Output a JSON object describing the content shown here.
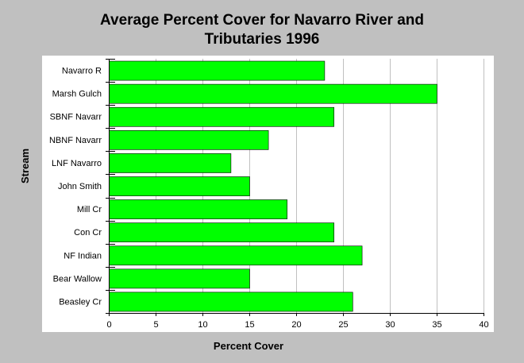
{
  "chart_data": {
    "type": "bar",
    "orientation": "horizontal",
    "title": "Average Percent Cover for Navarro River and Tributaries 1996",
    "title_lines": [
      "Average Percent Cover for Navarro River and",
      "Tributaries 1996"
    ],
    "xlabel": "Percent Cover",
    "ylabel": "Stream",
    "categories": [
      "Navarro R",
      "Marsh Gulch",
      "SBNF Navarr",
      "NBNF Navarr",
      "LNF Navarro",
      "John Smith",
      "Mill Cr",
      "Con Cr",
      "NF Indian",
      "Bear Wallow",
      "Beasley Cr"
    ],
    "values": [
      23,
      35,
      24,
      17,
      13,
      15,
      19,
      24,
      27,
      15,
      26
    ],
    "xlim": [
      0,
      40
    ],
    "xticks": [
      0,
      5,
      10,
      15,
      20,
      25,
      30,
      35,
      40
    ],
    "grid": "vertical",
    "legend": "none",
    "colors": {
      "bar": "#00ff00",
      "bar_edge": "#000000",
      "plot_bg": "#ffffff",
      "page_bg": "#c0c0c0",
      "grid": "#c0c0c0"
    }
  }
}
